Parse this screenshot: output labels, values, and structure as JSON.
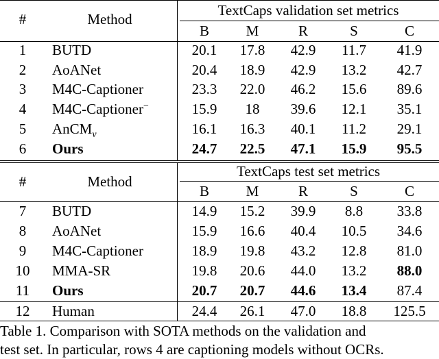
{
  "table": {
    "sections": [
      {
        "header": {
          "number_label": "#",
          "method_label": "Method",
          "group_title": "TextCaps validation set metrics",
          "metrics": [
            "B",
            "M",
            "R",
            "S",
            "C"
          ]
        },
        "rows": [
          {
            "num": "1",
            "method": "BUTD",
            "method_suffix": "",
            "method_sub": "",
            "values": [
              "20.1",
              "17.8",
              "42.9",
              "11.7",
              "41.9"
            ],
            "bold": [
              false,
              false,
              false,
              false,
              false
            ],
            "bold_method": false
          },
          {
            "num": "2",
            "method": "AoANet",
            "method_suffix": "",
            "method_sub": "",
            "values": [
              "20.4",
              "18.9",
              "42.9",
              "13.2",
              "42.7"
            ],
            "bold": [
              false,
              false,
              false,
              false,
              false
            ],
            "bold_method": false
          },
          {
            "num": "3",
            "method": "M4C-Captioner",
            "method_suffix": "",
            "method_sub": "",
            "values": [
              "23.3",
              "22.0",
              "46.2",
              "15.6",
              "89.6"
            ],
            "bold": [
              false,
              false,
              false,
              false,
              false
            ],
            "bold_method": false
          },
          {
            "num": "4",
            "method": "M4C-Captioner",
            "method_suffix": "−",
            "method_sub": "",
            "values": [
              "15.9",
              "18",
              "39.6",
              "12.1",
              "35.1"
            ],
            "bold": [
              false,
              false,
              false,
              false,
              false
            ],
            "bold_method": false
          },
          {
            "num": "5",
            "method": "AnCM",
            "method_suffix": "",
            "method_sub": "v",
            "values": [
              "16.1",
              "16.3",
              "40.1",
              "11.2",
              "29.1"
            ],
            "bold": [
              false,
              false,
              false,
              false,
              false
            ],
            "bold_method": false
          },
          {
            "num": "6",
            "method": "Ours",
            "method_suffix": "",
            "method_sub": "",
            "values": [
              "24.7",
              "22.5",
              "47.1",
              "15.9",
              "95.5"
            ],
            "bold": [
              true,
              true,
              true,
              true,
              true
            ],
            "bold_method": true
          }
        ]
      },
      {
        "header": {
          "number_label": "#",
          "method_label": "Method",
          "group_title": "TextCaps test set metrics",
          "metrics": [
            "B",
            "M",
            "R",
            "S",
            "C"
          ]
        },
        "rows": [
          {
            "num": "7",
            "method": "BUTD",
            "method_suffix": "",
            "method_sub": "",
            "values": [
              "14.9",
              "15.2",
              "39.9",
              "8.8",
              "33.8"
            ],
            "bold": [
              false,
              false,
              false,
              false,
              false
            ],
            "bold_method": false
          },
          {
            "num": "8",
            "method": "AoANet",
            "method_suffix": "",
            "method_sub": "",
            "values": [
              "15.9",
              "16.6",
              "40.4",
              "10.5",
              "34.6"
            ],
            "bold": [
              false,
              false,
              false,
              false,
              false
            ],
            "bold_method": false
          },
          {
            "num": "9",
            "method": "M4C-Captioner",
            "method_suffix": "",
            "method_sub": "",
            "values": [
              "18.9",
              "19.8",
              "43.2",
              "12.8",
              "81.0"
            ],
            "bold": [
              false,
              false,
              false,
              false,
              false
            ],
            "bold_method": false
          },
          {
            "num": "10",
            "method": "MMA-SR",
            "method_suffix": "",
            "method_sub": "",
            "values": [
              "19.8",
              "20.6",
              "44.0",
              "13.2",
              "88.0"
            ],
            "bold": [
              false,
              false,
              false,
              false,
              true
            ],
            "bold_method": false
          },
          {
            "num": "11",
            "method": "Ours",
            "method_suffix": "",
            "method_sub": "",
            "values": [
              "20.7",
              "20.7",
              "44.6",
              "13.4",
              "87.4"
            ],
            "bold": [
              true,
              true,
              true,
              true,
              false
            ],
            "bold_method": true
          }
        ],
        "footer_rows": [
          {
            "num": "12",
            "method": "Human",
            "method_suffix": "",
            "method_sub": "",
            "values": [
              "24.4",
              "26.1",
              "47.0",
              "18.8",
              "125.5"
            ],
            "bold": [
              false,
              false,
              false,
              false,
              false
            ],
            "bold_method": false
          }
        ]
      }
    ]
  },
  "caption": {
    "line1": "Table 1. Comparison with SOTA methods on the validation and",
    "line2": "test set. In particular, rows 4 are captioning models without OCRs."
  }
}
